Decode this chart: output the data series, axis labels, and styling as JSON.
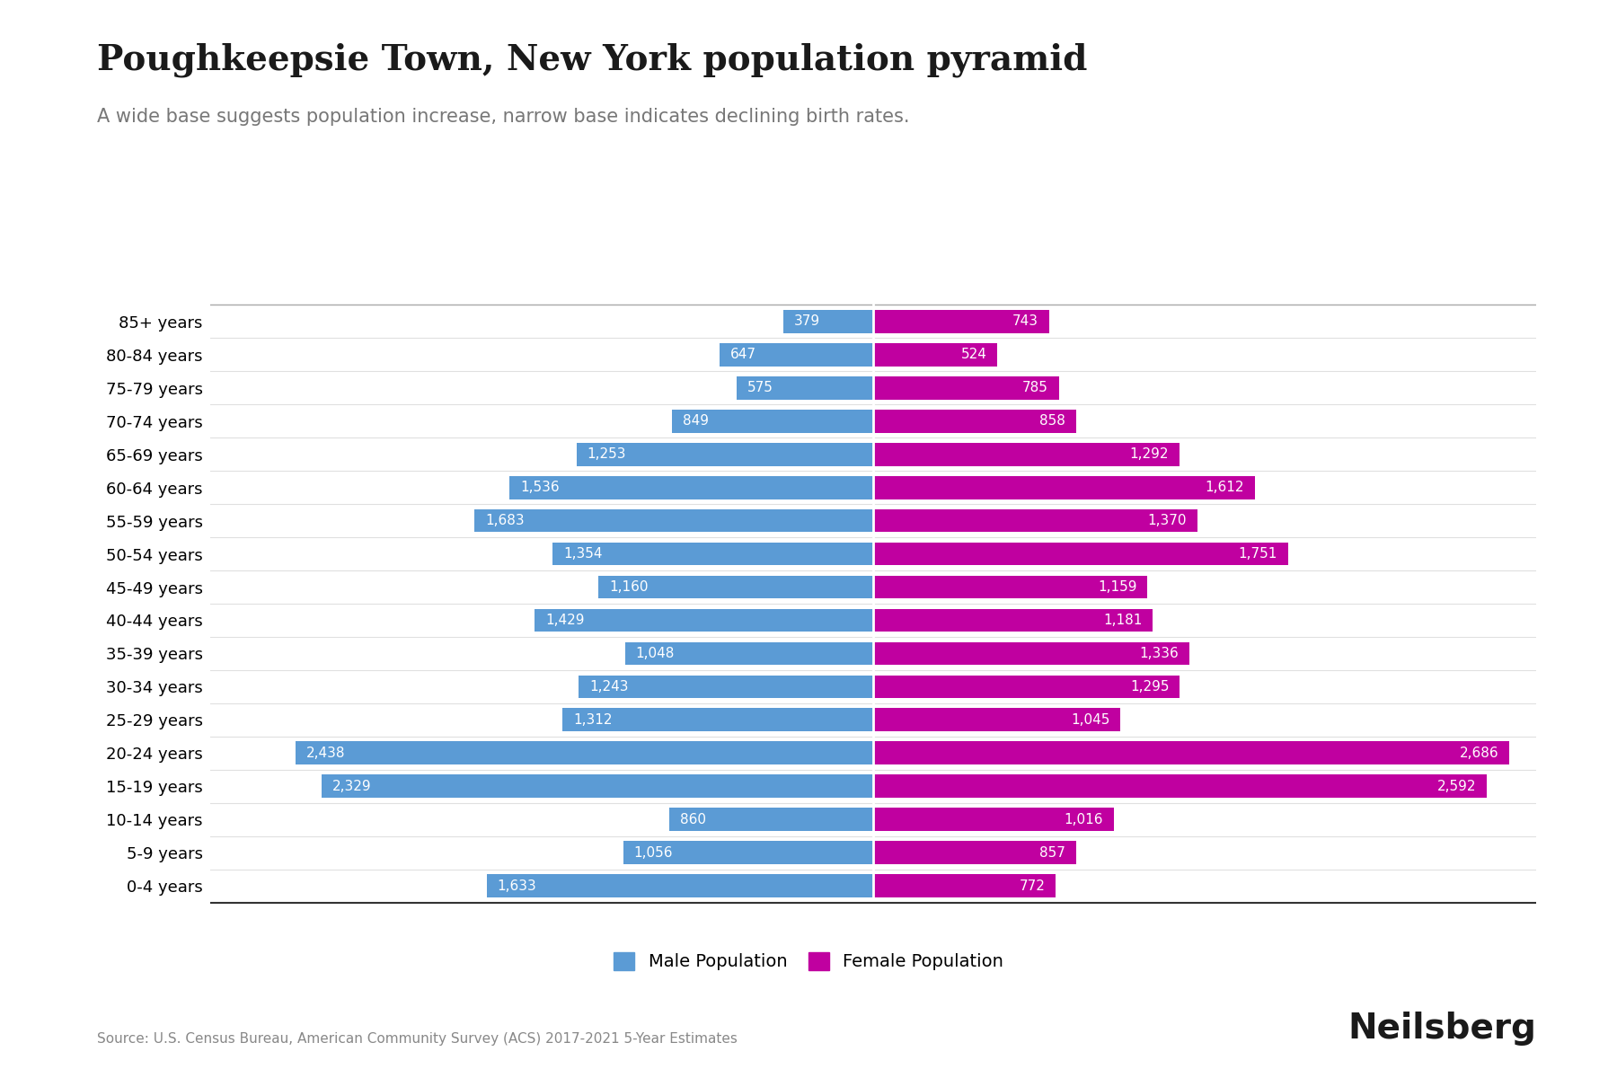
{
  "title": "Poughkeepsie Town, New York population pyramid",
  "subtitle": "A wide base suggests population increase, narrow base indicates declining birth rates.",
  "age_groups": [
    "85+ years",
    "80-84 years",
    "75-79 years",
    "70-74 years",
    "65-69 years",
    "60-64 years",
    "55-59 years",
    "50-54 years",
    "45-49 years",
    "40-44 years",
    "35-39 years",
    "30-34 years",
    "25-29 years",
    "20-24 years",
    "15-19 years",
    "10-14 years",
    "5-9 years",
    "0-4 years"
  ],
  "male": [
    379,
    647,
    575,
    849,
    1253,
    1536,
    1683,
    1354,
    1160,
    1429,
    1048,
    1243,
    1312,
    2438,
    2329,
    860,
    1056,
    1633
  ],
  "female": [
    743,
    524,
    785,
    858,
    1292,
    1612,
    1370,
    1751,
    1159,
    1181,
    1336,
    1295,
    1045,
    2686,
    2592,
    1016,
    857,
    772
  ],
  "male_color": "#5B9BD5",
  "female_color": "#C000A0",
  "background_color": "#FFFFFF",
  "title_fontsize": 28,
  "subtitle_fontsize": 15,
  "label_fontsize": 13,
  "bar_label_fontsize": 11,
  "source_text": "Source: U.S. Census Bureau, American Community Survey (ACS) 2017-2021 5-Year Estimates",
  "brand_text": "Neilsberg",
  "male_legend": "Male Population",
  "female_legend": "Female Population"
}
